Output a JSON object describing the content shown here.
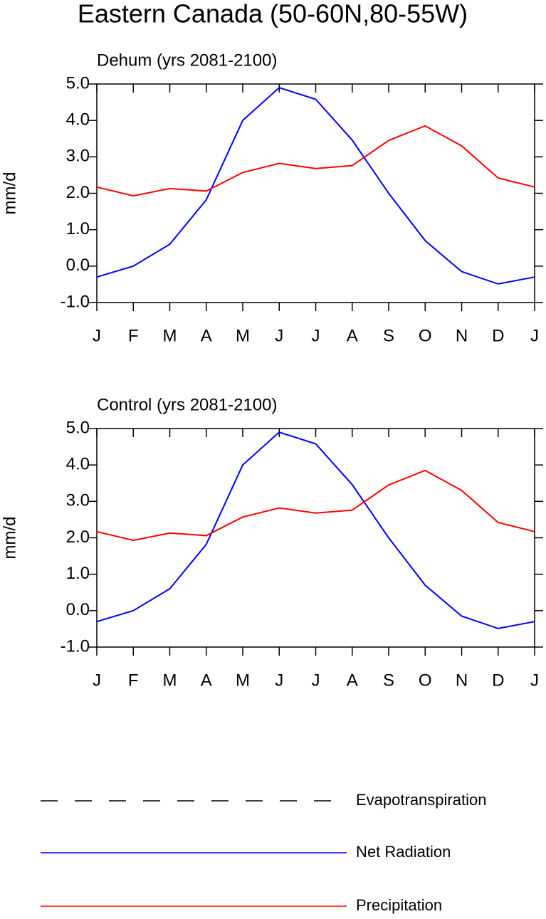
{
  "title": "Eastern Canada (50-60N,80-55W)",
  "chart_data": [
    {
      "type": "line",
      "title": "Dehum (yrs 2081-2100)",
      "ylabel": "mm/d",
      "categories": [
        "J",
        "F",
        "M",
        "A",
        "M",
        "J",
        "J",
        "A",
        "S",
        "O",
        "N",
        "D",
        "J"
      ],
      "ylim": [
        -1,
        5
      ],
      "yticks": [
        {
          "value": -1,
          "label": "-1.0"
        },
        {
          "value": 0,
          "label": "0.0"
        },
        {
          "value": 1,
          "label": "1.0"
        },
        {
          "value": 2,
          "label": "2.0"
        },
        {
          "value": 3,
          "label": "3.0"
        },
        {
          "value": 4,
          "label": "4.0"
        },
        {
          "value": 5,
          "label": "5.0"
        }
      ],
      "series": [
        {
          "name": "Evapotranspiration",
          "color": "#000000",
          "dash": true,
          "values": [
            null,
            null,
            null,
            null,
            null,
            null,
            null,
            null,
            null,
            null,
            null,
            null,
            null
          ]
        },
        {
          "name": "Net Radiation",
          "color": "#0000ff",
          "values": [
            -0.3,
            0.0,
            0.6,
            1.82,
            4.0,
            4.9,
            4.58,
            3.46,
            2.0,
            0.7,
            -0.15,
            -0.49,
            -0.3
          ]
        },
        {
          "name": "Precipitation",
          "color": "#ff0000",
          "values": [
            2.17,
            1.93,
            2.13,
            2.06,
            2.57,
            2.82,
            2.68,
            2.76,
            3.45,
            3.85,
            3.3,
            2.42,
            2.17
          ]
        }
      ]
    },
    {
      "type": "line",
      "title": "Control (yrs 2081-2100)",
      "ylabel": "mm/d",
      "categories": [
        "J",
        "F",
        "M",
        "A",
        "M",
        "J",
        "J",
        "A",
        "S",
        "O",
        "N",
        "D",
        "J"
      ],
      "ylim": [
        -1,
        5
      ],
      "yticks": [
        {
          "value": -1,
          "label": "-1.0"
        },
        {
          "value": 0,
          "label": "0.0"
        },
        {
          "value": 1,
          "label": "1.0"
        },
        {
          "value": 2,
          "label": "2.0"
        },
        {
          "value": 3,
          "label": "3.0"
        },
        {
          "value": 4,
          "label": "4.0"
        },
        {
          "value": 5,
          "label": "5.0"
        }
      ],
      "series": [
        {
          "name": "Evapotranspiration",
          "color": "#000000",
          "dash": true,
          "values": [
            null,
            null,
            null,
            null,
            null,
            null,
            null,
            null,
            null,
            null,
            null,
            null,
            null
          ]
        },
        {
          "name": "Net Radiation",
          "color": "#0000ff",
          "values": [
            -0.3,
            0.0,
            0.6,
            1.82,
            4.0,
            4.9,
            4.58,
            3.46,
            2.0,
            0.7,
            -0.15,
            -0.49,
            -0.3
          ]
        },
        {
          "name": "Precipitation",
          "color": "#ff0000",
          "values": [
            2.17,
            1.93,
            2.13,
            2.06,
            2.57,
            2.82,
            2.68,
            2.76,
            3.45,
            3.85,
            3.3,
            2.42,
            2.17
          ]
        }
      ]
    }
  ]
}
